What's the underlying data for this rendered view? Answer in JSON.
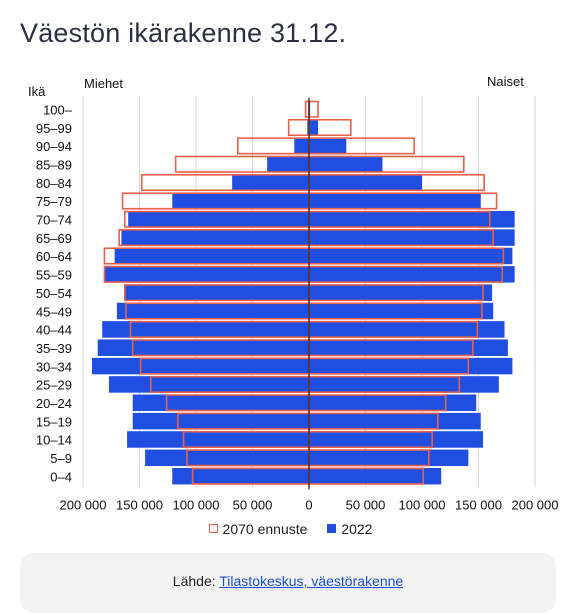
{
  "page": {
    "title": "Väestön ikärakenne 31.12."
  },
  "chart_data": {
    "type": "bar",
    "orientation": "horizontal-population-pyramid",
    "age_label": "Ikä",
    "left_label": "Miehet",
    "right_label": "Naiset",
    "categories": [
      "100–",
      "95–99",
      "90–94",
      "85–89",
      "80–84",
      "75–79",
      "70–74",
      "65–69",
      "60–64",
      "55–59",
      "50–54",
      "45–49",
      "40–44",
      "35–39",
      "30–34",
      "25–29",
      "20–24",
      "15–19",
      "10–14",
      "5–9",
      "0–4"
    ],
    "x_ticks": [
      "200 000",
      "150 000",
      "100 000",
      "50 000",
      "0",
      "50 000",
      "100 000",
      "150 000",
      "200 000"
    ],
    "xlim": [
      -200000,
      200000
    ],
    "series": [
      {
        "name": "2022",
        "color": "#1f4ee0",
        "men": [
          200,
          1500,
          13000,
          37000,
          68000,
          121000,
          160000,
          166000,
          172000,
          181000,
          163000,
          170000,
          183000,
          187000,
          192000,
          177000,
          156000,
          156000,
          161000,
          145000,
          121000
        ],
        "women": [
          1000,
          8000,
          33000,
          65000,
          100000,
          152000,
          182000,
          182000,
          180000,
          182000,
          162000,
          163000,
          173000,
          176000,
          180000,
          168000,
          148000,
          152000,
          154000,
          141000,
          117000
        ]
      },
      {
        "name": "2070 ennuste",
        "color": "#e8604a",
        "men": [
          3000,
          18000,
          63000,
          118000,
          148000,
          165000,
          163000,
          168000,
          181000,
          181000,
          163000,
          162000,
          158000,
          156000,
          149000,
          140000,
          126000,
          116000,
          111000,
          108000,
          103000
        ],
        "women": [
          8000,
          37000,
          93000,
          137000,
          155000,
          166000,
          160000,
          163000,
          172000,
          171000,
          154000,
          153000,
          149000,
          145000,
          141000,
          133000,
          121000,
          114000,
          109000,
          106000,
          101000
        ]
      }
    ],
    "legend_position": "bottom",
    "grid": true
  },
  "source": {
    "prefix": "Lähde: ",
    "link": "Tilastokeskus, väestörakenne"
  }
}
